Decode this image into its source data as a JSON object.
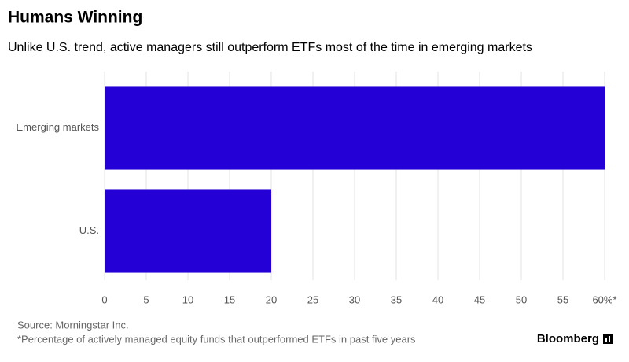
{
  "chart_data": {
    "type": "hbar",
    "title": "Humans Winning",
    "subtitle": "Unlike U.S. trend, active managers still outperform ETFs most of the time in emerging markets",
    "categories": [
      "Emerging markets",
      "U.S."
    ],
    "values": [
      60,
      20
    ],
    "color": "#2400d6",
    "xlim": [
      0,
      60
    ],
    "xticks": [
      0,
      5,
      10,
      15,
      20,
      25,
      30,
      35,
      40,
      45,
      50,
      55,
      {
        "value": 60,
        "label": "60%*"
      }
    ],
    "grid": true,
    "source": "Source: Morningstar Inc.",
    "note": "*Percentage of actively managed equity funds that outperformed ETFs in past five years",
    "brand": "Bloomberg"
  }
}
